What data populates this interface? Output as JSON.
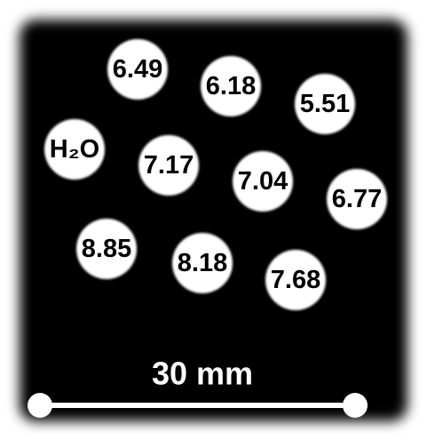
{
  "samples": [
    {
      "label": "6.49"
    },
    {
      "label": "6.18"
    },
    {
      "label": "5.51"
    },
    {
      "label": "H₂O"
    },
    {
      "label": "7.17"
    },
    {
      "label": "7.04"
    },
    {
      "label": "6.77"
    },
    {
      "label": "8.85"
    },
    {
      "label": "8.18"
    },
    {
      "label": "7.68"
    }
  ],
  "scale_bar": {
    "label": "30 mm"
  }
}
